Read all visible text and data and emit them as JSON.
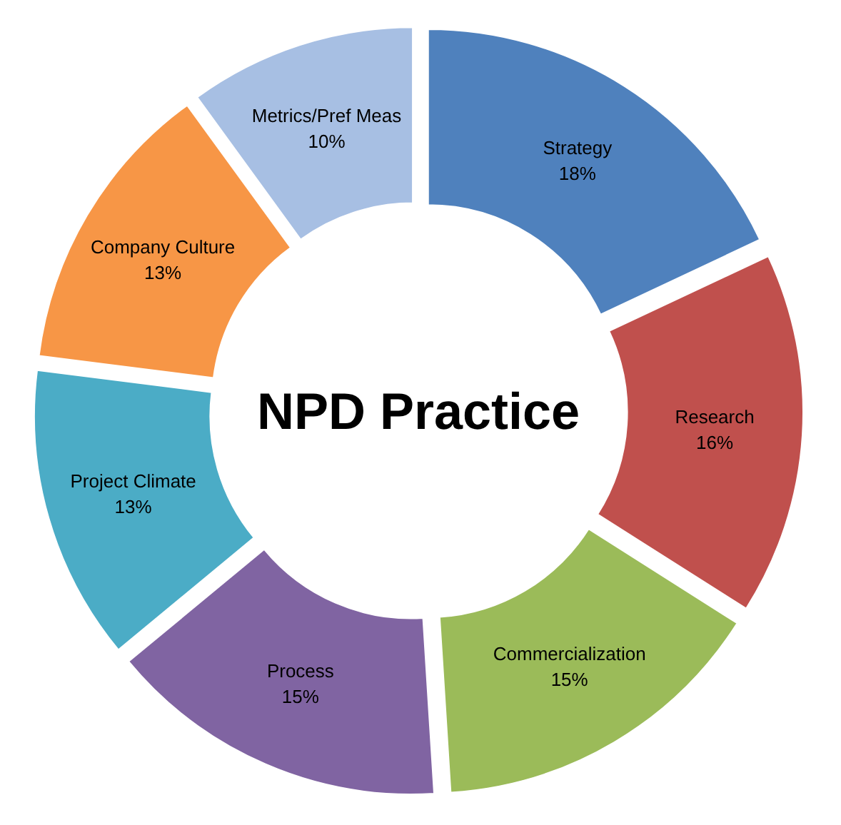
{
  "chart_data": {
    "type": "donut",
    "title": "NPD Practice",
    "categories": [
      "Strategy",
      "Research",
      "Commercialization",
      "Process",
      "Project Climate",
      "Company Culture",
      "Metrics/Pref Meas"
    ],
    "values": [
      18,
      16,
      15,
      15,
      13,
      13,
      10
    ],
    "colors": [
      "#4f81bd",
      "#c0504d",
      "#9bbb59",
      "#8064a2",
      "#4bacc6",
      "#f79646",
      "#a7bfe3"
    ],
    "value_labels": [
      "18%",
      "16%",
      "15%",
      "15%",
      "13%",
      "13%",
      "10%"
    ]
  }
}
